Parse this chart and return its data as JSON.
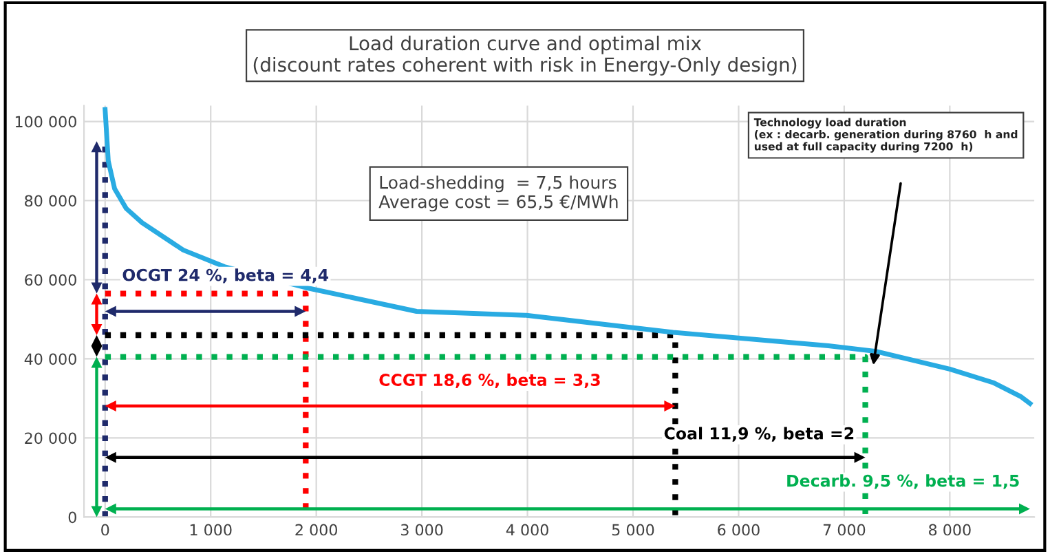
{
  "chart_data": {
    "type": "line",
    "title": "Load duration curve and optimal mix\n(discount rates coherent with risk in Energy-Only design)",
    "xlim": [
      -200,
      8800
    ],
    "ylim": [
      0,
      104000
    ],
    "xticks": [
      {
        "value": 0,
        "label": "0"
      },
      {
        "value": 1000,
        "label": "1 000"
      },
      {
        "value": 2000,
        "label": "2 000"
      },
      {
        "value": 3000,
        "label": "3 000"
      },
      {
        "value": 4000,
        "label": "4 000"
      },
      {
        "value": 5000,
        "label": "5 000"
      },
      {
        "value": 6000,
        "label": "6 000"
      },
      {
        "value": 7000,
        "label": "7 000"
      },
      {
        "value": 8000,
        "label": "8 000"
      }
    ],
    "yticks": [
      {
        "value": 0,
        "label": "0"
      },
      {
        "value": 20000,
        "label": "20 000"
      },
      {
        "value": 40000,
        "label": "40 000"
      },
      {
        "value": 60000,
        "label": "60 000"
      },
      {
        "value": 80000,
        "label": "80 000"
      },
      {
        "value": 100000,
        "label": "100 000"
      }
    ],
    "grid": true,
    "series": [
      {
        "color": "#29abe2",
        "line_style": "solid",
        "x": [
          0,
          30,
          90,
          200,
          350,
          740,
          1130,
          1900,
          2950,
          3990,
          5380,
          6850,
          7300,
          8000,
          8410,
          8670,
          8760
        ],
        "values": [
          103000,
          90000,
          83000,
          78000,
          74400,
          67500,
          63300,
          58000,
          52000,
          51000,
          46700,
          43300,
          41900,
          37400,
          34000,
          30500,
          28700
        ]
      },
      {
        "color": "#1f2a6b",
        "line_style": "dotted",
        "x": [
          0,
          0
        ],
        "values": [
          0,
          95000
        ]
      },
      {
        "color": "#ff0000",
        "line_style": "dotted",
        "x": [
          0,
          1900,
          1900
        ],
        "values": [
          56500,
          56500,
          0
        ]
      },
      {
        "color": "#000000",
        "line_style": "dotted",
        "x": [
          0,
          5400,
          5400
        ],
        "values": [
          46000,
          46000,
          0
        ]
      },
      {
        "color": "#00b050",
        "line_style": "dotted",
        "x": [
          0,
          7200,
          7200
        ],
        "values": [
          40500,
          40500,
          0
        ]
      }
    ],
    "annotations": [
      "OCGT 24 %, beta = 4,4",
      "CCGT 18,6 %, beta = 3,3",
      "Coal 11,9 %, beta =2",
      "Decarb. 9,5 %, beta = 1,5",
      "Load-shedding  = 7,5 hours\nAverage cost = 65,5 €/MWh",
      "Technology load duration\n(ex : decarb. generation during 8760  h and\nused at full capacity during 7200  h)"
    ]
  }
}
